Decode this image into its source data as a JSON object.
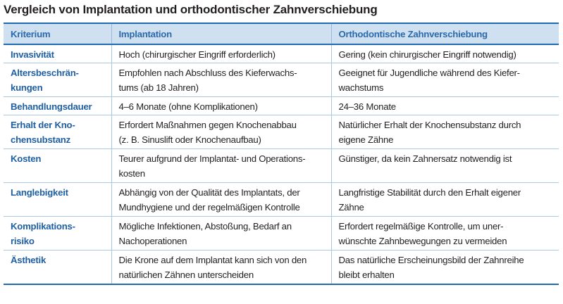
{
  "title": "Vergleich von Implantation und orthodontischer Zahnverschiebung",
  "table": {
    "headers": [
      "Kriterium",
      "Implantation",
      "Orthodontische Zahnverschiebung"
    ],
    "rows": [
      {
        "criterion": "Invasivität",
        "implantation": "Hoch (chirurgischer Eingriff erforderlich)",
        "ortho": "Gering (kein chirurgischer Eingriff notwendig)"
      },
      {
        "criterion": "Altersbeschrän-\nkungen",
        "implantation": "Empfohlen nach Abschluss des Kieferwachs-\ntums (ab 18 Jahren)",
        "ortho": "Geeignet für Jugendliche während des Kiefer-\nwachstums"
      },
      {
        "criterion": "Behandlungsdauer",
        "implantation": "4–6 Monate (ohne Komplikationen)",
        "ortho": "24–36 Monate"
      },
      {
        "criterion": "Erhalt der Kno-\nchensubstanz",
        "implantation": "Erfordert Maßnahmen gegen Knochenabbau\n(z. B. Sinuslift oder Knochenaufbau)",
        "ortho": "Natürlicher Erhalt der Knochensubstanz durch\neigene Zähne"
      },
      {
        "criterion": "Kosten",
        "implantation": "Teurer aufgrund der Implantat- und Operations-\nkosten",
        "ortho": "Günstiger, da kein Zahnersatz notwendig ist"
      },
      {
        "criterion": "Langlebigkeit",
        "implantation": "Abhängig von der Qualität des Implantats, der\nMundhygiene und der regelmäßigen Kontrolle",
        "ortho": "Langfristige Stabilität durch den Erhalt eigener\nZähne"
      },
      {
        "criterion": "Komplikations-\nrisiko",
        "implantation": "Mögliche Infektionen, Abstoßung, Bedarf an\nNachoperationen",
        "ortho": "Erfordert regelmäßige Kontrolle, um uner-\nwünschte Zahnbewegungen zu vermeiden"
      },
      {
        "criterion": "Ästhetik",
        "implantation": "Die Krone auf dem Implantat kann sich von den\nnatürlichen Zähnen unterscheiden",
        "ortho": "Das natürliche Erscheinungsbild der Zahnreihe\nbleibt erhalten"
      }
    ]
  },
  "colors": {
    "header_background": "#cfe0f0",
    "header_text": "#2a6aad",
    "criterion_text": "#1f5fa3",
    "rule_strong": "#1f6ab0",
    "rule_light": "#a9c6e2",
    "body_text": "#231f20"
  }
}
